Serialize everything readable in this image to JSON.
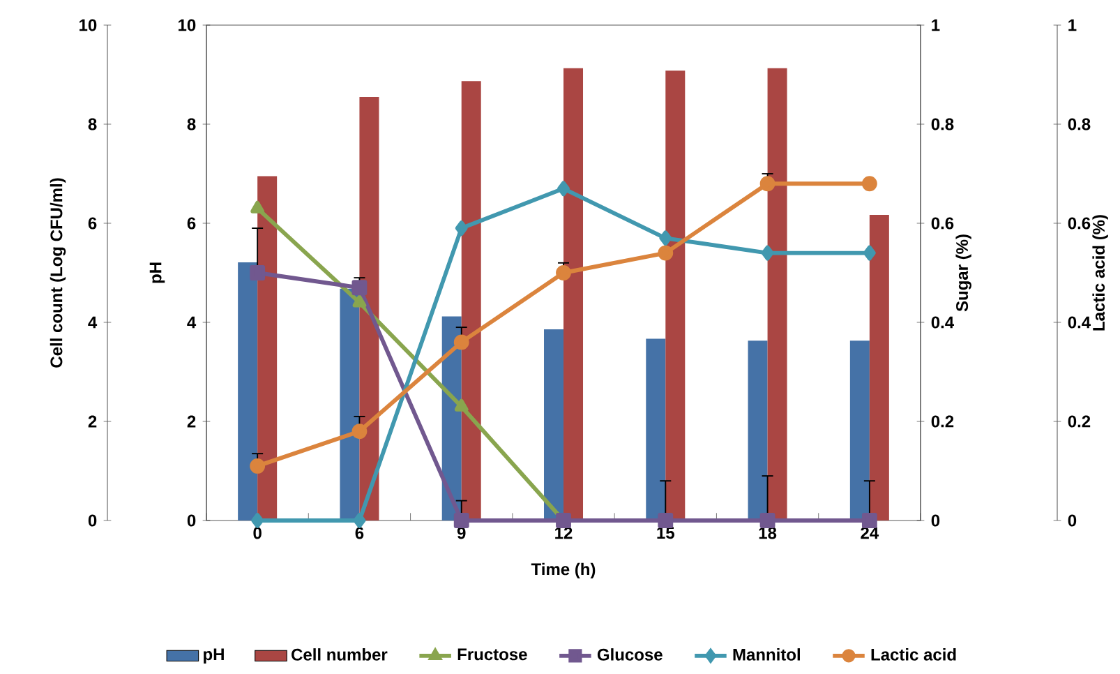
{
  "chart_data": {
    "type": "bar",
    "xlabel": "Time (h)",
    "ylabel": "pH",
    "y2label": "Sugar (%)",
    "y3label": "Lactic acid (%)",
    "annotations": [
      "Cell count (Log CFU/ml)",
      "0",
      "2",
      "4",
      "6",
      "8",
      "10"
    ],
    "categories": [
      "0",
      "6",
      "9",
      "12",
      "15",
      "18",
      "24"
    ],
    "ylim": [
      0,
      10
    ],
    "yticks": [
      0,
      2,
      4,
      6,
      8,
      10
    ],
    "y2lim": [
      0,
      1
    ],
    "y2ticks": [
      0,
      0.2,
      0.4,
      0.6,
      0.8,
      1
    ],
    "y3lim": [
      0,
      1
    ],
    "y3ticks": [
      0,
      0.2,
      0.4,
      0.6,
      0.8,
      1
    ],
    "legend": "bottom",
    "series": [
      {
        "name": "pH",
        "color": "#4572a7",
        "values": [
          5.21,
          4.68,
          4.12,
          3.86,
          3.67,
          3.63,
          3.63
        ]
      },
      {
        "name": "Cell number",
        "color": "#aa4643",
        "values": [
          6.95,
          8.55,
          8.87,
          9.13,
          9.08,
          9.13,
          6.17
        ]
      },
      {
        "name": "Fructose",
        "type": "line",
        "axis": "y2",
        "marker": "triangle",
        "color": "#89a54e",
        "values": [
          0.63,
          0.44,
          0.23,
          0.0,
          null,
          null,
          null
        ]
      },
      {
        "name": "Glucose",
        "type": "line",
        "axis": "y2",
        "marker": "square",
        "color": "#71588f",
        "values": [
          0.5,
          0.47,
          0.0,
          0.0,
          0.0,
          0.0,
          0.0
        ],
        "errors": [
          [
            0.5,
            0.59
          ],
          [
            0.47,
            0.49
          ],
          [
            0.0,
            0.04
          ],
          null,
          [
            0.0,
            0.08
          ],
          [
            0.0,
            0.09
          ],
          [
            0.0,
            0.08
          ]
        ]
      },
      {
        "name": "Mannitol",
        "type": "line",
        "axis": "y2",
        "marker": "diamond",
        "color": "#4198af",
        "values": [
          0.0,
          0.0,
          0.59,
          0.67,
          0.57,
          0.54,
          0.54
        ]
      },
      {
        "name": "Lactic acid",
        "type": "line",
        "axis": "y3",
        "marker": "circle",
        "color": "#db843d",
        "values": [
          0.11,
          0.18,
          0.36,
          0.5,
          0.54,
          0.68,
          0.68
        ],
        "errors": [
          [
            0.11,
            0.135
          ],
          [
            0.18,
            0.21
          ],
          [
            0.36,
            0.39
          ],
          [
            0.5,
            0.52
          ],
          null,
          [
            0.68,
            0.7
          ],
          null
        ]
      }
    ]
  }
}
